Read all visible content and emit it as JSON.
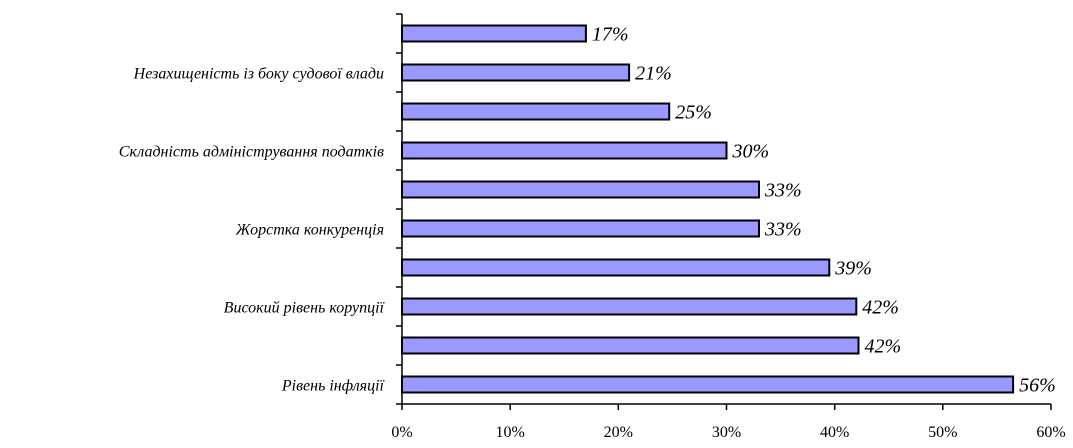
{
  "chart_data": {
    "type": "bar",
    "orientation": "horizontal",
    "categories": [
      "",
      "Незахищеність із боку судової влади",
      "",
      "Складність адміністрування податків",
      "",
      "Жорстка конкуренція",
      "",
      "Високий рівень корупції",
      "",
      "Рівень інфляції"
    ],
    "values": [
      17,
      21,
      25,
      30,
      33,
      33,
      39,
      42,
      42,
      56
    ],
    "data_labels": [
      "17%",
      "21%",
      "25%",
      "30%",
      "33%",
      "33%",
      "39%",
      "42%",
      "42%",
      "56%"
    ],
    "bar_value_positions": [
      17,
      21,
      24.7,
      30,
      33,
      33,
      39.5,
      42,
      42.2,
      56.5
    ],
    "xlim": [
      0,
      60
    ],
    "x_ticks": [
      0,
      10,
      20,
      30,
      40,
      50,
      60
    ],
    "x_tick_labels": [
      "0%",
      "10%",
      "20%",
      "30%",
      "40%",
      "50%",
      "60%"
    ],
    "grid": false,
    "legend": "none",
    "title": "",
    "xlabel": "",
    "ylabel": "",
    "colors": {
      "bar_fill": "#9999ff",
      "bar_stroke": "#000000",
      "axis": "#000000",
      "text": "#000000"
    }
  }
}
